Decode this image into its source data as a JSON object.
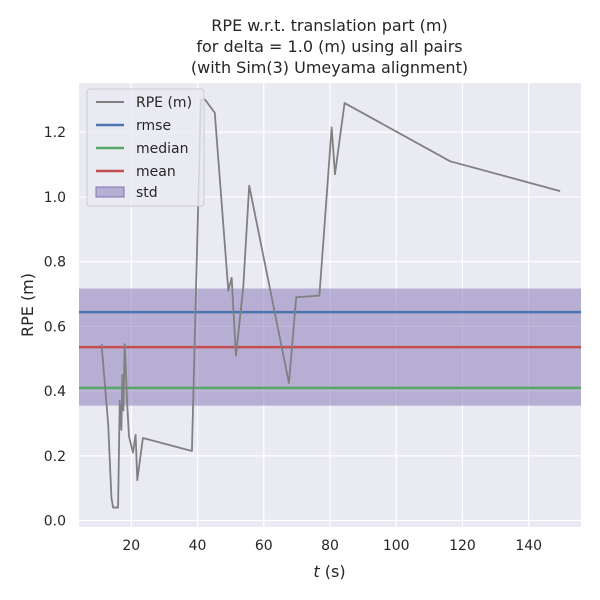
{
  "chart_data": {
    "type": "line",
    "title_lines": [
      "RPE w.r.t. translation part (m)",
      "for delta = 1.0 (m) using all pairs",
      "(with Sim(3) Umeyama alignment)"
    ],
    "xlabel_italic": "t",
    "xlabel_rest": " (s)",
    "ylabel": "RPE (m)",
    "xlim": [
      4.2,
      155.8
    ],
    "ylim": [
      -0.02,
      1.352
    ],
    "xticks": [
      20,
      40,
      60,
      80,
      100,
      120,
      140
    ],
    "xtick_labels": [
      "20",
      "40",
      "60",
      "80",
      "100",
      "120",
      "140"
    ],
    "yticks": [
      0.0,
      0.2,
      0.4,
      0.6,
      0.8,
      1.0,
      1.2
    ],
    "ytick_labels": [
      "0.0",
      "0.2",
      "0.4",
      "0.6",
      "0.8",
      "1.0",
      "1.2"
    ],
    "series": [
      {
        "name": "RPE (m)",
        "color": "#808080",
        "x": [
          11.0,
          13.0,
          14.0,
          14.5,
          16.0,
          16.5,
          17.0,
          17.3,
          17.6,
          18.0,
          18.4,
          18.8,
          19.3,
          20.5,
          21.3,
          21.8,
          23.5,
          38.3,
          41.0,
          42.3,
          45.2,
          49.3,
          50.3,
          51.6,
          53.8,
          55.6,
          67.6,
          69.8,
          76.8,
          80.5,
          81.5,
          84.4,
          116.3,
          149.5
        ],
        "y": [
          0.545,
          0.3,
          0.07,
          0.04,
          0.04,
          0.37,
          0.28,
          0.45,
          0.34,
          0.545,
          0.45,
          0.35,
          0.26,
          0.21,
          0.265,
          0.125,
          0.255,
          0.215,
          1.3,
          1.3,
          1.26,
          0.71,
          0.75,
          0.51,
          0.72,
          1.035,
          0.425,
          0.69,
          0.695,
          1.215,
          1.07,
          1.29,
          1.11,
          1.018
        ]
      }
    ],
    "stats": [
      {
        "name": "rmse",
        "value": 0.644,
        "color": "#4c72b0"
      },
      {
        "name": "median",
        "value": 0.41,
        "color": "#55a868"
      },
      {
        "name": "mean",
        "value": 0.536,
        "color": "#c44e52"
      }
    ],
    "std_band": {
      "name": "std",
      "low": 0.355,
      "high": 0.717,
      "color": "#8172b3"
    },
    "legend": [
      "RPE (m)",
      "rmse",
      "median",
      "mean",
      "std"
    ],
    "legend_position": "upper-left",
    "grid": true
  }
}
